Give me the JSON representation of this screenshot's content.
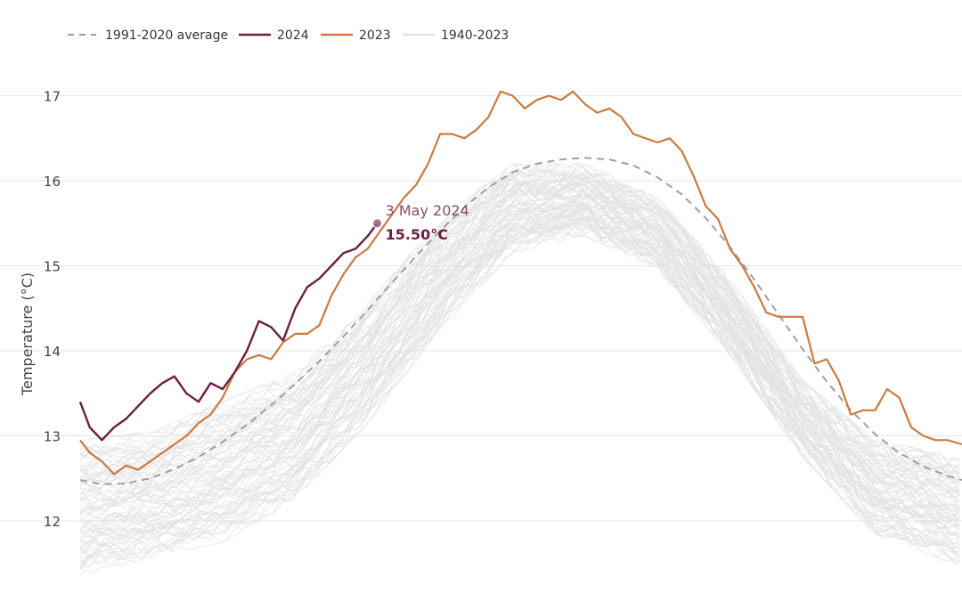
{
  "chart_data": {
    "type": "line",
    "ylabel": "Temperature (°C)",
    "ylim": [
      11,
      17.5
    ],
    "xlim": [
      1,
      366
    ],
    "grid": true,
    "legend_placement": "top-left",
    "y_ticks": [
      12,
      13,
      14,
      15,
      16,
      17
    ],
    "y_tick_labels": [
      "12",
      "13",
      "14",
      "15",
      "16",
      "17"
    ],
    "annotation": {
      "label": "3 May 2024",
      "value_label": "15.50°C",
      "x": 124,
      "y": 15.5
    },
    "legend": [
      {
        "label": "1991-2020 average",
        "series": "average"
      },
      {
        "label": "2024",
        "series": "2024"
      },
      {
        "label": "2023",
        "series": "2023"
      },
      {
        "label": "1940-2023",
        "series": "historical"
      }
    ],
    "colors": {
      "average": "#9e9e9e",
      "2024": "#6b1f3f",
      "2023": "#cc7a3e",
      "historical": "#e2e2e2",
      "gridline": "#e6e6e6",
      "annotation_date": "#8c4a6a"
    },
    "series": [
      {
        "name": "1991-2020 average",
        "x": [
          1,
          10,
          20,
          30,
          40,
          50,
          60,
          70,
          80,
          90,
          100,
          110,
          120,
          130,
          140,
          150,
          160,
          170,
          180,
          190,
          200,
          210,
          220,
          230,
          240,
          250,
          260,
          270,
          280,
          290,
          300,
          310,
          320,
          330,
          340,
          350,
          360,
          366
        ],
        "y": [
          12.48,
          12.43,
          12.44,
          12.5,
          12.61,
          12.75,
          12.93,
          13.13,
          13.36,
          13.61,
          13.88,
          14.17,
          14.48,
          14.8,
          15.11,
          15.41,
          15.69,
          15.92,
          16.1,
          16.2,
          16.25,
          16.27,
          16.25,
          16.18,
          16.04,
          15.84,
          15.56,
          15.22,
          14.84,
          14.43,
          14.02,
          13.64,
          13.3,
          13.02,
          12.8,
          12.64,
          12.53,
          12.48
        ]
      },
      {
        "name": "2024",
        "x": [
          1,
          5,
          10,
          15,
          20,
          25,
          30,
          35,
          40,
          45,
          50,
          55,
          60,
          65,
          70,
          75,
          80,
          85,
          90,
          95,
          100,
          105,
          110,
          115,
          120,
          124
        ],
        "y": [
          13.4,
          13.1,
          12.95,
          13.1,
          13.2,
          13.35,
          13.5,
          13.62,
          13.7,
          13.5,
          13.4,
          13.62,
          13.55,
          13.75,
          14.0,
          14.35,
          14.28,
          14.12,
          14.5,
          14.75,
          14.85,
          15.0,
          15.15,
          15.2,
          15.35,
          15.5
        ]
      },
      {
        "name": "2023",
        "x": [
          1,
          5,
          10,
          15,
          20,
          25,
          30,
          35,
          40,
          45,
          50,
          55,
          60,
          65,
          70,
          75,
          80,
          85,
          90,
          95,
          100,
          105,
          110,
          115,
          120,
          125,
          130,
          135,
          140,
          145,
          150,
          155,
          160,
          165,
          170,
          175,
          180,
          185,
          190,
          195,
          200,
          205,
          210,
          215,
          220,
          225,
          230,
          235,
          240,
          245,
          250,
          255,
          260,
          265,
          270,
          275,
          280,
          285,
          290,
          295,
          300,
          305,
          310,
          315,
          320,
          325,
          330,
          335,
          340,
          345,
          350,
          355,
          360,
          366
        ],
        "y": [
          12.95,
          12.8,
          12.7,
          12.55,
          12.65,
          12.6,
          12.7,
          12.8,
          12.9,
          13.0,
          13.15,
          13.25,
          13.45,
          13.75,
          13.9,
          13.95,
          13.9,
          14.1,
          14.2,
          14.2,
          14.3,
          14.65,
          14.9,
          15.1,
          15.2,
          15.4,
          15.6,
          15.8,
          15.95,
          16.2,
          16.55,
          16.55,
          16.5,
          16.6,
          16.75,
          17.05,
          17.0,
          16.85,
          16.95,
          17.0,
          16.95,
          17.05,
          16.9,
          16.8,
          16.85,
          16.75,
          16.55,
          16.5,
          16.45,
          16.5,
          16.35,
          16.05,
          15.7,
          15.55,
          15.2,
          15.0,
          14.75,
          14.45,
          14.4,
          14.4,
          14.4,
          13.85,
          13.9,
          13.65,
          13.25,
          13.3,
          13.3,
          13.55,
          13.45,
          13.1,
          13.0,
          12.95,
          12.95,
          12.9
        ]
      }
    ],
    "historical_band": {
      "name": "1940-2023",
      "x": [
        1,
        30,
        60,
        90,
        120,
        150,
        180,
        210,
        240,
        270,
        300,
        330,
        366
      ],
      "low": [
        11.4,
        11.6,
        11.8,
        12.3,
        13.2,
        14.3,
        15.2,
        15.4,
        15.0,
        14.0,
        12.8,
        11.9,
        11.5
      ],
      "high": [
        12.9,
        13.0,
        13.35,
        13.7,
        14.5,
        15.5,
        16.15,
        16.15,
        15.75,
        14.8,
        13.6,
        12.9,
        12.7
      ]
    }
  }
}
